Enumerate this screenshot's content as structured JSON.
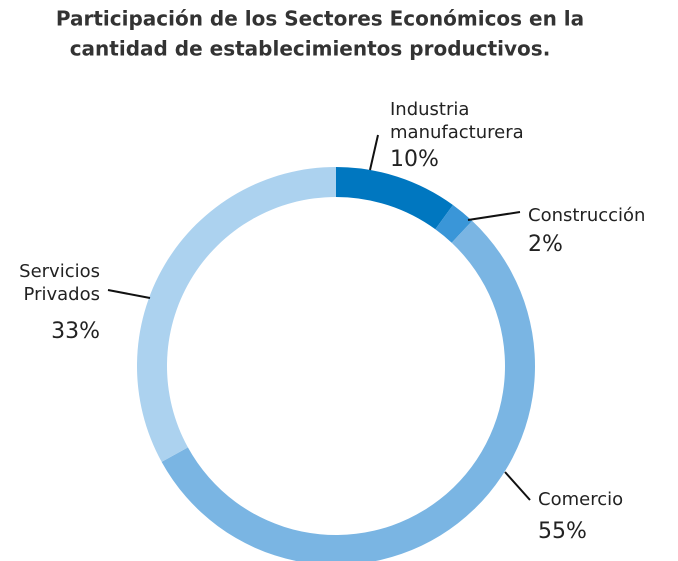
{
  "chart_data": {
    "type": "donut",
    "title": [
      "Participación de los Sectores Económicos en la",
      "cantidad de establecimientos productivos."
    ],
    "categories": [
      [
        "Industria",
        "manufacturera"
      ],
      [
        "Construcción"
      ],
      [
        "Comercio"
      ],
      [
        "Servicios",
        "Privados"
      ]
    ],
    "values": [
      10,
      2,
      55,
      33
    ],
    "value_labels": [
      "10%",
      "2%",
      "55%",
      "33%"
    ],
    "colors": [
      "#0077c0",
      "#3a96d8",
      "#7ab5e3",
      "#acd2ef"
    ]
  }
}
